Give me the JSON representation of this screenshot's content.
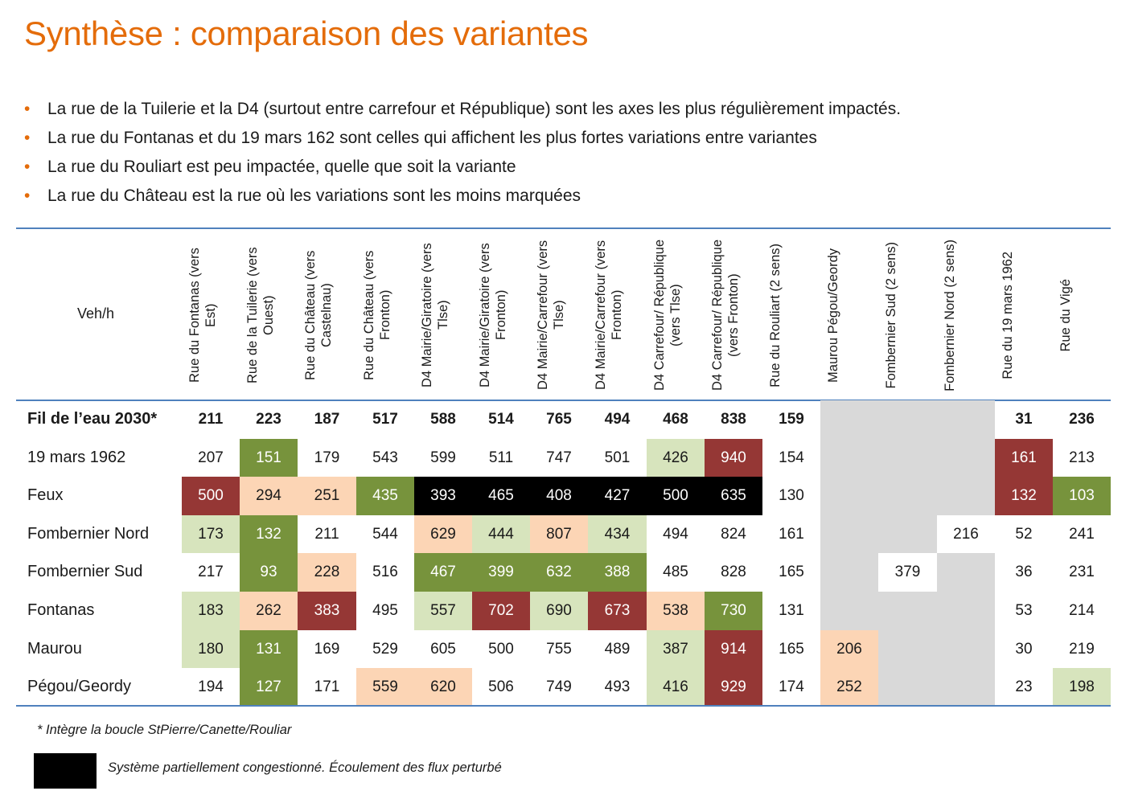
{
  "title": "Synthèse : comparaison des variantes",
  "bullets": [
    "La rue de la Tuilerie et la D4 (surtout entre carrefour et République) sont les axes les plus régulièrement impactés.",
    "La rue du Fontanas et du 19 mars 162 sont celles qui affichent les plus fortes variations entre variantes",
    "La rue du Rouliart est peu impactée, quelle que soit la variante",
    "La rue du Château est la rue où les variations sont les moins marquées"
  ],
  "table": {
    "unit_label": "Veh/h",
    "columns": [
      "Rue du Fontanas (vers Est)",
      "Rue de la Tuilerie (vers Ouest)",
      "Rue du Château (vers Castelnau)",
      "Rue du Château (vers Fronton)",
      "D4 Mairie/Giratoire (vers Tlse)",
      "D4 Mairie/Giratoire (vers Fronton)",
      "D4 Mairie/Carrefour (vers Tlse)",
      "D4 Mairie/Carrefour (vers Fronton)",
      "D4 Carrefour/ République (vers Tlse)",
      "D4 Carrefour/ République (vers Fronton)",
      "Rue du Rouliart (2 sens)",
      "Maurou Pégou/Geordy",
      "Fombernier Sud (2 sens)",
      "Fombernier Nord (2 sens)",
      "Rue du 19 mars 1962",
      "Rue du Vigé"
    ],
    "rows": [
      {
        "label": "Fil de l’eau 2030*",
        "bold": true,
        "cells": [
          "211",
          "223",
          "187",
          "517",
          "588",
          "514",
          "765",
          "494",
          "468",
          "838",
          "159",
          null,
          null,
          null,
          "31",
          "236"
        ],
        "colors": [
          "",
          "",
          "",
          "",
          "",
          "",
          "",
          "",
          "",
          "",
          "",
          "",
          "",
          "",
          "",
          ""
        ]
      },
      {
        "label": "19 mars 1962",
        "bold": false,
        "cells": [
          "207",
          "151",
          "179",
          "543",
          "599",
          "511",
          "747",
          "501",
          "426",
          "940",
          "154",
          null,
          null,
          null,
          "161",
          "213"
        ],
        "colors": [
          "",
          "dg",
          "",
          "",
          "",
          "",
          "",
          "",
          "lg",
          "rd",
          "",
          "",
          "",
          "",
          "rd",
          ""
        ]
      },
      {
        "label": "Feux",
        "bold": false,
        "cells": [
          "500",
          "294",
          "251",
          "435",
          "393",
          "465",
          "408",
          "427",
          "500",
          "635",
          "130",
          null,
          null,
          null,
          "132",
          "103"
        ],
        "colors": [
          "rd",
          "pk",
          "pk",
          "dg",
          "bk",
          "bk",
          "bk",
          "bk",
          "bk",
          "bk",
          "",
          "",
          "",
          "",
          "rd",
          "dg"
        ]
      },
      {
        "label": "Fombernier Nord",
        "bold": false,
        "cells": [
          "173",
          "132",
          "211",
          "544",
          "629",
          "444",
          "807",
          "434",
          "494",
          "824",
          "161",
          null,
          null,
          "216",
          "52",
          "241"
        ],
        "colors": [
          "lg",
          "dg",
          "",
          "",
          "pk",
          "lg",
          "pk",
          "lg",
          "",
          "",
          "",
          "",
          "",
          "wh",
          "",
          ""
        ]
      },
      {
        "label": "Fombernier Sud",
        "bold": false,
        "cells": [
          "217",
          "93",
          "228",
          "516",
          "467",
          "399",
          "632",
          "388",
          "485",
          "828",
          "165",
          null,
          "379",
          null,
          "36",
          "231"
        ],
        "colors": [
          "",
          "dg",
          "pk",
          "",
          "dg",
          "dg",
          "dg",
          "dg",
          "",
          "",
          "",
          "",
          "wh",
          "",
          "",
          ""
        ]
      },
      {
        "label": "Fontanas",
        "bold": false,
        "cells": [
          "183",
          "262",
          "383",
          "495",
          "557",
          "702",
          "690",
          "673",
          "538",
          "730",
          "131",
          null,
          null,
          null,
          "53",
          "214"
        ],
        "colors": [
          "lg",
          "pk",
          "rd",
          "",
          "lg",
          "rd",
          "lg",
          "rd",
          "pk",
          "dg",
          "",
          "",
          "",
          "",
          "",
          ""
        ]
      },
      {
        "label": "Maurou",
        "bold": false,
        "cells": [
          "180",
          "131",
          "169",
          "529",
          "605",
          "500",
          "755",
          "489",
          "387",
          "914",
          "165",
          "206",
          null,
          null,
          "30",
          "219"
        ],
        "colors": [
          "lg",
          "dg",
          "",
          "",
          "",
          "",
          "",
          "",
          "lg",
          "rd",
          "",
          "pk",
          "",
          "",
          "",
          ""
        ]
      },
      {
        "label": "Pégou/Geordy",
        "bold": false,
        "cells": [
          "194",
          "127",
          "171",
          "559",
          "620",
          "506",
          "749",
          "493",
          "416",
          "929",
          "174",
          "252",
          null,
          null,
          "23",
          "198"
        ],
        "colors": [
          "",
          "dg",
          "",
          "pk",
          "pk",
          "",
          "",
          "",
          "lg",
          "rd",
          "",
          "pk",
          "",
          "",
          "",
          "lg"
        ]
      }
    ]
  },
  "footnote": "* Intègre la boucle StPierre/Canette/Rouliar",
  "legend": {
    "text": "Système partiellement congestionné. Écoulement des flux perturbé"
  }
}
